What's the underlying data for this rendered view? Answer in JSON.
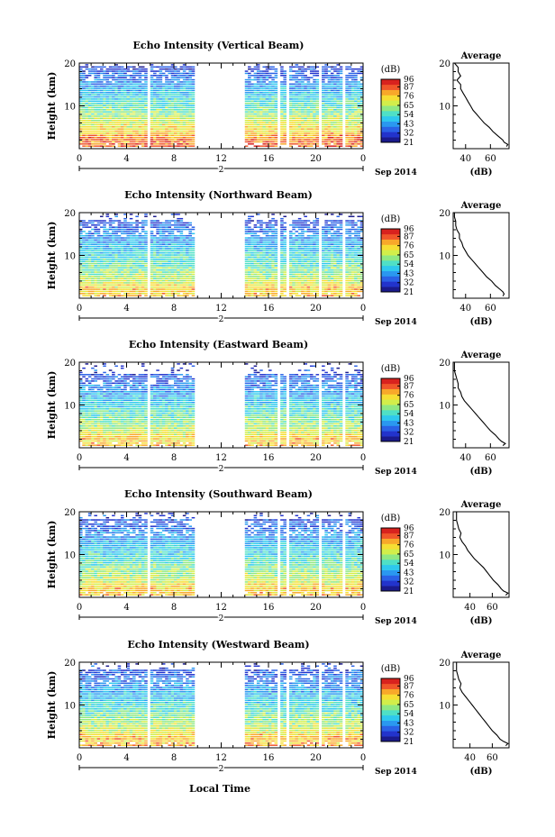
{
  "figure": {
    "x_axis_label": "Local Time",
    "date_label": "Sep 2014",
    "day_marker": "2"
  },
  "colorscale": {
    "unit_label": "(dB)",
    "ticks": [
      "96",
      "87",
      "76",
      "65",
      "54",
      "43",
      "32",
      "21"
    ],
    "tick_values": [
      96,
      87,
      76,
      65,
      54,
      43,
      32,
      21
    ],
    "min": 21,
    "max": 96,
    "colors": [
      "#1a1a8c",
      "#2233cc",
      "#2a62e6",
      "#2a98f0",
      "#2ec8ee",
      "#4fe0c6",
      "#8fe882",
      "#d2ee4a",
      "#f6de33",
      "#f8a82a",
      "#f0562a",
      "#d8221e"
    ]
  },
  "chart_data": [
    {
      "type": "heatmap",
      "title": "Echo Intensity (Vertical Beam)",
      "ylabel": "Height (km)",
      "xlabel": "Local Time",
      "x_ticks": [
        "0",
        "4",
        "8",
        "12",
        "16",
        "20",
        "0"
      ],
      "x_tick_values": [
        0,
        4,
        8,
        12,
        16,
        20,
        24
      ],
      "xlim": [
        0,
        24
      ],
      "y_ticks": [
        "20",
        "10"
      ],
      "y_tick_values": [
        20,
        10
      ],
      "ylim": [
        0,
        20
      ],
      "data_gaps_hours": [
        [
          5.7,
          5.95
        ],
        [
          9.7,
          14.0
        ],
        [
          16.8,
          17.1
        ],
        [
          17.5,
          17.8
        ],
        [
          20.3,
          20.5
        ],
        [
          22.2,
          22.4
        ]
      ],
      "echo_top_km": 19,
      "surface_value_db": 90,
      "top_value_db": 30,
      "profile": {
        "title": "Average",
        "xlabel": "(dB)",
        "x_ticks": [
          "40",
          "60"
        ],
        "x_tick_values": [
          40,
          60
        ],
        "xlim": [
          30,
          75
        ],
        "y_ticks": [
          "20",
          "10"
        ],
        "y_tick_values": [
          20,
          10
        ],
        "ylim": [
          0,
          20
        ],
        "heights_km": [
          0.5,
          1,
          1.5,
          2,
          3,
          4,
          5,
          6,
          7,
          8,
          9,
          10,
          11,
          12,
          13,
          14,
          15,
          16,
          17,
          18,
          19,
          20
        ],
        "values_db": [
          73,
          74,
          71,
          70,
          66,
          62,
          59,
          55,
          52,
          49,
          46,
          44,
          42,
          40,
          38,
          36,
          36,
          33,
          36,
          34,
          34,
          31
        ]
      }
    },
    {
      "type": "heatmap",
      "title": "Echo Intensity (Northward Beam)",
      "ylabel": "Height (km)",
      "xlabel": "Local Time",
      "x_ticks": [
        "0",
        "4",
        "8",
        "12",
        "16",
        "20",
        "0"
      ],
      "x_tick_values": [
        0,
        4,
        8,
        12,
        16,
        20,
        24
      ],
      "xlim": [
        0,
        24
      ],
      "y_ticks": [
        "20",
        "10"
      ],
      "y_tick_values": [
        20,
        10
      ],
      "ylim": [
        0,
        20
      ],
      "data_gaps_hours": [
        [
          5.7,
          5.95
        ],
        [
          9.7,
          14.0
        ],
        [
          16.8,
          17.1
        ],
        [
          17.5,
          17.8
        ],
        [
          20.3,
          20.5
        ],
        [
          22.2,
          22.4
        ]
      ],
      "echo_top_km": 18,
      "surface_value_db": 80,
      "top_value_db": 30,
      "profile": {
        "title": "Average",
        "xlabel": "(dB)",
        "x_ticks": [
          "40",
          "60"
        ],
        "x_tick_values": [
          40,
          60
        ],
        "xlim": [
          30,
          75
        ],
        "y_ticks": [
          "20",
          "10"
        ],
        "y_tick_values": [
          20,
          10
        ],
        "ylim": [
          0,
          20
        ],
        "heights_km": [
          0.5,
          1,
          1.5,
          2,
          3,
          4,
          5,
          6,
          7,
          8,
          9,
          10,
          11,
          12,
          13,
          14,
          15,
          16,
          17,
          18,
          19,
          20
        ],
        "values_db": [
          70,
          71,
          70,
          68,
          64,
          61,
          57,
          54,
          51,
          48,
          45,
          42,
          40,
          38,
          37,
          35,
          35,
          33,
          32,
          32,
          31,
          31
        ]
      }
    },
    {
      "type": "heatmap",
      "title": "Echo Intensity (Eastward Beam)",
      "ylabel": "Height (km)",
      "xlabel": "Local Time",
      "x_ticks": [
        "0",
        "4",
        "8",
        "12",
        "16",
        "20",
        "0"
      ],
      "x_tick_values": [
        0,
        4,
        8,
        12,
        16,
        20,
        24
      ],
      "xlim": [
        0,
        24
      ],
      "y_ticks": [
        "20",
        "10"
      ],
      "y_tick_values": [
        20,
        10
      ],
      "ylim": [
        0,
        20
      ],
      "data_gaps_hours": [
        [
          5.7,
          5.95
        ],
        [
          9.7,
          14.0
        ],
        [
          16.8,
          17.1
        ],
        [
          17.5,
          17.8
        ],
        [
          20.3,
          20.5
        ],
        [
          22.2,
          22.4
        ]
      ],
      "echo_top_km": 17,
      "surface_value_db": 80,
      "top_value_db": 28,
      "profile": {
        "title": "Average",
        "xlabel": "(dB)",
        "x_ticks": [
          "40",
          "60"
        ],
        "x_tick_values": [
          40,
          60
        ],
        "xlim": [
          30,
          75
        ],
        "y_ticks": [
          "20",
          "10"
        ],
        "y_tick_values": [
          20,
          10
        ],
        "ylim": [
          0,
          20
        ],
        "heights_km": [
          0.5,
          1,
          1.5,
          2,
          3,
          4,
          5,
          6,
          7,
          8,
          9,
          10,
          11,
          12,
          13,
          14,
          15,
          16,
          17,
          18,
          19,
          20
        ],
        "values_db": [
          70,
          72,
          69,
          67,
          64,
          60,
          57,
          54,
          51,
          48,
          45,
          42,
          39,
          37,
          36,
          34,
          34,
          33,
          32,
          31,
          31,
          31
        ]
      }
    },
    {
      "type": "heatmap",
      "title": "Echo Intensity (Southward Beam)",
      "ylabel": "Height (km)",
      "xlabel": "Local Time",
      "x_ticks": [
        "0",
        "4",
        "8",
        "12",
        "16",
        "20",
        "0"
      ],
      "x_tick_values": [
        0,
        4,
        8,
        12,
        16,
        20,
        24
      ],
      "xlim": [
        0,
        24
      ],
      "y_ticks": [
        "20",
        "10"
      ],
      "y_tick_values": [
        20,
        10
      ],
      "ylim": [
        0,
        20
      ],
      "data_gaps_hours": [
        [
          5.7,
          5.95
        ],
        [
          9.7,
          14.0
        ],
        [
          16.8,
          17.1
        ],
        [
          17.5,
          17.8
        ],
        [
          20.3,
          20.5
        ],
        [
          22.2,
          22.4
        ]
      ],
      "echo_top_km": 18,
      "surface_value_db": 80,
      "top_value_db": 30,
      "profile": {
        "title": "Average",
        "xlabel": "(dB)",
        "x_ticks": [
          "40",
          "60"
        ],
        "x_tick_values": [
          40,
          60
        ],
        "xlim": [
          25,
          75
        ],
        "y_ticks": [
          "20",
          "10"
        ],
        "y_tick_values": [
          20,
          10
        ],
        "ylim": [
          0,
          20
        ],
        "heights_km": [
          0.5,
          1,
          1.5,
          2,
          3,
          4,
          5,
          6,
          7,
          8,
          9,
          10,
          11,
          12,
          13,
          14,
          15,
          16,
          17,
          18,
          19,
          20
        ],
        "values_db": [
          72,
          74,
          70,
          68,
          65,
          61,
          58,
          55,
          52,
          48,
          44,
          41,
          38,
          36,
          33,
          31,
          32,
          30,
          29,
          28,
          28,
          28
        ]
      }
    },
    {
      "type": "heatmap",
      "title": "Echo Intensity (Westward Beam)",
      "ylabel": "Height (km)",
      "xlabel": "Local Time",
      "x_ticks": [
        "0",
        "4",
        "8",
        "12",
        "16",
        "20",
        "0"
      ],
      "x_tick_values": [
        0,
        4,
        8,
        12,
        16,
        20,
        24
      ],
      "xlim": [
        0,
        24
      ],
      "y_ticks": [
        "20",
        "10"
      ],
      "y_tick_values": [
        20,
        10
      ],
      "ylim": [
        0,
        20
      ],
      "data_gaps_hours": [
        [
          5.7,
          5.95
        ],
        [
          9.7,
          14.0
        ],
        [
          16.8,
          17.1
        ],
        [
          17.5,
          17.8
        ],
        [
          20.3,
          20.5
        ],
        [
          22.2,
          22.4
        ]
      ],
      "echo_top_km": 18,
      "surface_value_db": 82,
      "top_value_db": 30,
      "profile": {
        "title": "Average",
        "xlabel": "(dB)",
        "x_ticks": [
          "40",
          "60"
        ],
        "x_tick_values": [
          40,
          60
        ],
        "xlim": [
          25,
          75
        ],
        "y_ticks": [
          "20",
          "10"
        ],
        "y_tick_values": [
          20,
          10
        ],
        "ylim": [
          0,
          20
        ],
        "heights_km": [
          0.5,
          1,
          1.5,
          2,
          3,
          4,
          5,
          6,
          7,
          8,
          9,
          10,
          11,
          12,
          13,
          14,
          15,
          16,
          17,
          18,
          19,
          20
        ],
        "values_db": [
          72,
          74,
          70,
          67,
          64,
          60,
          57,
          54,
          51,
          48,
          45,
          42,
          39,
          36,
          33,
          31,
          32,
          30,
          29,
          28,
          28,
          28
        ]
      }
    }
  ]
}
